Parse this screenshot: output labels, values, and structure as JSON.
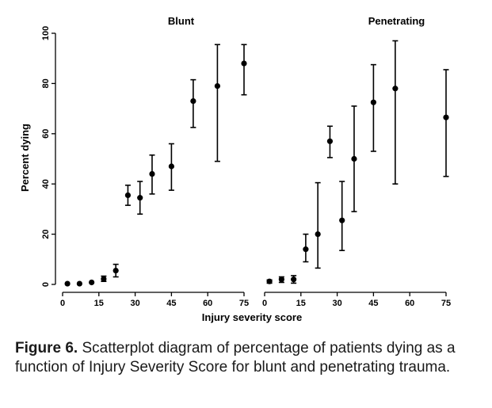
{
  "chart_data": {
    "type": "scatter",
    "ylabel": "Percent dying",
    "xlabel": "Injury severity score",
    "ylim": [
      0,
      100
    ],
    "yticks": [
      "0",
      "20",
      "40",
      "60",
      "80",
      "100"
    ],
    "xticks": [
      "0",
      "15",
      "30",
      "45",
      "60",
      "75"
    ],
    "xlim": [
      0,
      75
    ],
    "grid": false,
    "panels": [
      {
        "title": "Blunt",
        "points": [
          {
            "x": 2,
            "y": 0.3,
            "lo": null,
            "hi": null
          },
          {
            "x": 7,
            "y": 0.3,
            "lo": null,
            "hi": null
          },
          {
            "x": 12,
            "y": 0.8,
            "lo": null,
            "hi": null
          },
          {
            "x": 17,
            "y": 2.2,
            "lo": 1.2,
            "hi": 3.3
          },
          {
            "x": 22,
            "y": 5.5,
            "lo": 3.0,
            "hi": 8.0
          },
          {
            "x": 27,
            "y": 35.5,
            "lo": 31.5,
            "hi": 39.5
          },
          {
            "x": 32,
            "y": 34.5,
            "lo": 28.0,
            "hi": 41.0
          },
          {
            "x": 37,
            "y": 44,
            "lo": 36.0,
            "hi": 51.5
          },
          {
            "x": 45,
            "y": 47,
            "lo": 37.5,
            "hi": 56.0
          },
          {
            "x": 54,
            "y": 73,
            "lo": 62.5,
            "hi": 81.5
          },
          {
            "x": 64,
            "y": 79,
            "lo": 49.0,
            "hi": 95.5
          },
          {
            "x": 75,
            "y": 88,
            "lo": 75.5,
            "hi": 95.5
          }
        ]
      },
      {
        "title": "Penetrating",
        "points": [
          {
            "x": 2,
            "y": 1.2,
            "lo": 0.5,
            "hi": 1.8
          },
          {
            "x": 7,
            "y": 2.0,
            "lo": 0.8,
            "hi": 3.0
          },
          {
            "x": 12,
            "y": 2.0,
            "lo": 0.5,
            "hi": 3.5
          },
          {
            "x": 17,
            "y": 14,
            "lo": 9.0,
            "hi": 20.0
          },
          {
            "x": 22,
            "y": 20,
            "lo": 6.5,
            "hi": 40.5
          },
          {
            "x": 27,
            "y": 57,
            "lo": 50.5,
            "hi": 63.0
          },
          {
            "x": 32,
            "y": 25.5,
            "lo": 13.5,
            "hi": 41.0
          },
          {
            "x": 37,
            "y": 50,
            "lo": 29.0,
            "hi": 71.0
          },
          {
            "x": 45,
            "y": 72.5,
            "lo": 53.0,
            "hi": 87.5
          },
          {
            "x": 54,
            "y": 78,
            "lo": 40.0,
            "hi": 97.0
          },
          {
            "x": 75,
            "y": 66.5,
            "lo": 43.0,
            "hi": 85.5
          }
        ]
      }
    ]
  },
  "caption": {
    "label": "Figure 6.",
    "text": " Scatterplot diagram of percentage of patients dying as a function of Injury Severity Score for blunt and penetrating trauma."
  }
}
